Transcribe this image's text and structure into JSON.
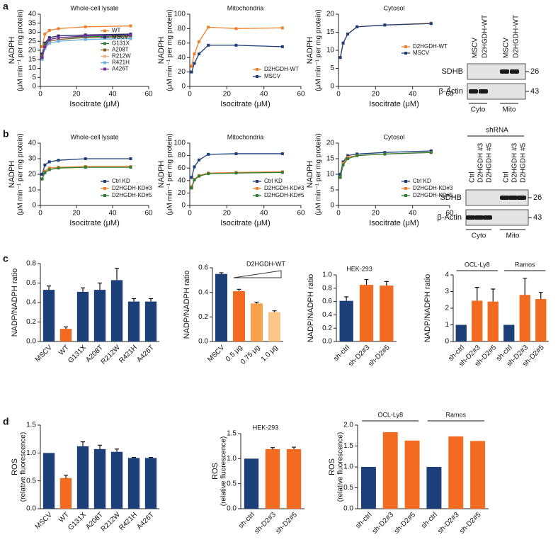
{
  "panel_labels": [
    "a",
    "b",
    "c",
    "d"
  ],
  "chart_data": [
    {
      "type": "line",
      "title": "Whole-cell lysate",
      "ylabel": [
        "NADPH",
        "(μM min⁻¹ per mg protein)"
      ],
      "xlabel": "Isocitrate (μM)",
      "x": [
        1,
        2.5,
        5,
        10,
        25,
        50
      ],
      "xlim": [
        0,
        60
      ],
      "xticks": [
        0,
        20,
        40,
        60
      ],
      "ylim": [
        0,
        40
      ],
      "yticks": [
        0,
        5,
        10,
        15,
        20,
        25,
        30,
        35,
        40
      ],
      "legend": "center right",
      "series": [
        {
          "name": "WT",
          "color": "#f07f2a",
          "values": [
            22,
            29,
            31,
            32,
            33,
            33.5
          ]
        },
        {
          "name": "MSCV",
          "color": "#2b2a6b",
          "values": [
            18,
            24,
            27,
            28,
            28.5,
            29
          ]
        },
        {
          "name": "G131X",
          "color": "#2e7d32",
          "values": [
            17,
            23,
            26,
            27,
            27.5,
            28
          ]
        },
        {
          "name": "A208T",
          "color": "#8b5a2b",
          "values": [
            17,
            22,
            25,
            26,
            27,
            27.5
          ]
        },
        {
          "name": "R212W",
          "color": "#f4b183",
          "values": [
            16,
            21,
            24,
            25,
            26,
            26.5
          ]
        },
        {
          "name": "R421H",
          "color": "#69b3e7",
          "values": [
            15,
            21,
            24,
            25,
            26,
            26.5
          ]
        },
        {
          "name": "A426T",
          "color": "#7030a0",
          "values": [
            16,
            22,
            26,
            27,
            28,
            28.5
          ]
        }
      ]
    },
    {
      "type": "line",
      "title": "Mitochondria",
      "ylabel": [
        "NADPH",
        "(μM min⁻¹ per mg protein)"
      ],
      "xlabel": "Isocitrate (μM)",
      "x": [
        1,
        2.5,
        5,
        10,
        25,
        50
      ],
      "xlim": [
        0,
        60
      ],
      "xticks": [
        0,
        20,
        40,
        60
      ],
      "ylim": [
        0,
        100
      ],
      "yticks": [
        0,
        20,
        40,
        60,
        80,
        100
      ],
      "legend": "lower right",
      "series": [
        {
          "name": "D2HGDH-WT",
          "color": "#f07f2a",
          "values": [
            28,
            45,
            62,
            82,
            80,
            81
          ]
        },
        {
          "name": "MSCV",
          "color": "#1c3f7a",
          "values": [
            20,
            32,
            45,
            57,
            57,
            55
          ]
        }
      ]
    },
    {
      "type": "line",
      "title": "Cytosol",
      "ylabel": [
        "NADPH",
        "(μM min⁻¹ per mg protein)"
      ],
      "xlabel": "Isocitrate (μM)",
      "x": [
        1,
        2.5,
        5,
        10,
        25,
        50
      ],
      "xlim": [
        0,
        60
      ],
      "xticks": [
        0,
        20,
        40,
        60
      ],
      "ylim": [
        0,
        20
      ],
      "yticks": [
        0,
        5,
        10,
        15,
        20
      ],
      "legend": "center right",
      "series": [
        {
          "name": "D2HGDH-WT",
          "color": "#f07f2a",
          "values": [
            8,
            12,
            14.5,
            16.5,
            17,
            17.5
          ]
        },
        {
          "name": "MSCV",
          "color": "#1c3f7a",
          "values": [
            8,
            12,
            14.5,
            16.5,
            17,
            17.4
          ]
        }
      ]
    },
    {
      "type": "line",
      "title": "Whole-cell lysate",
      "ylabel": [
        "NADPH",
        "(μM min⁻¹ per mg protein)"
      ],
      "xlabel": "Isocitrate (μM)",
      "x": [
        1,
        2.5,
        5,
        10,
        25,
        50
      ],
      "xlim": [
        0,
        60
      ],
      "xticks": [
        0,
        20,
        40,
        60
      ],
      "ylim": [
        0,
        40
      ],
      "yticks": [
        0,
        10,
        20,
        30,
        40
      ],
      "legend": "lower right",
      "series": [
        {
          "name": "Ctrl KD",
          "color": "#1c3f7a",
          "values": [
            20,
            26,
            28,
            29,
            30,
            30
          ]
        },
        {
          "name": "D2HGDH-KD#3",
          "color": "#f07f2a",
          "values": [
            17,
            22,
            24,
            24.5,
            25,
            25
          ]
        },
        {
          "name": "D2HGDH-KD#5",
          "color": "#2e7d32",
          "values": [
            17,
            21,
            23,
            24,
            24.5,
            24.5
          ]
        }
      ]
    },
    {
      "type": "line",
      "title": "Mitochondria",
      "ylabel": [
        "NADPH",
        "(μM min⁻¹ per mg protein)"
      ],
      "xlabel": "Isocitrate (μM)",
      "x": [
        1,
        2.5,
        5,
        10,
        25,
        50
      ],
      "xlim": [
        0,
        60
      ],
      "xticks": [
        0,
        20,
        40,
        60
      ],
      "ylim": [
        0,
        100
      ],
      "yticks": [
        0,
        20,
        40,
        60,
        80,
        100
      ],
      "legend": "lower right",
      "series": [
        {
          "name": "Ctrl KD",
          "color": "#1c3f7a",
          "values": [
            45,
            62,
            73,
            82,
            83,
            83
          ]
        },
        {
          "name": "D2HGDH-KD#3",
          "color": "#f07f2a",
          "values": [
            30,
            42,
            48,
            52,
            53,
            54
          ]
        },
        {
          "name": "D2HGDH-KD#5",
          "color": "#2e7d32",
          "values": [
            28,
            41,
            47,
            51,
            52,
            53
          ]
        }
      ]
    },
    {
      "type": "line",
      "title": "Cytosol",
      "ylabel": [
        "NADPH",
        "(μM min⁻¹ per mg protein)"
      ],
      "xlabel": "Isocitrate (μM)",
      "x": [
        1,
        2.5,
        5,
        10,
        25,
        50
      ],
      "xlim": [
        0,
        60
      ],
      "xticks": [
        0,
        20,
        40,
        60
      ],
      "ylim": [
        0,
        20
      ],
      "yticks": [
        0,
        5,
        10,
        15,
        20
      ],
      "legend": "lower right",
      "series": [
        {
          "name": "Ctrl KD",
          "color": "#1c3f7a",
          "values": [
            10,
            14,
            16,
            16.5,
            17,
            17.5
          ]
        },
        {
          "name": "D2HGDH-KD#3",
          "color": "#f07f2a",
          "values": [
            9,
            13.5,
            15.5,
            16,
            16.5,
            17
          ]
        },
        {
          "name": "D2HGDH-KD#5",
          "color": "#2e7d32",
          "values": [
            9,
            13,
            15,
            16,
            16.5,
            17
          ]
        }
      ]
    },
    {
      "type": "bar",
      "ylabel": [
        "NADP/NADPH ratio"
      ],
      "categories": [
        "MSCV",
        "WT",
        "G131X",
        "A208T",
        "R212W",
        "R421H",
        "A426T"
      ],
      "values": [
        0.53,
        0.13,
        0.51,
        0.53,
        0.63,
        0.41,
        0.41
      ],
      "errors": [
        0.04,
        0.02,
        0.04,
        0.07,
        0.12,
        0.03,
        0.03
      ],
      "colors": [
        "#1c3f7a",
        "#f26b21",
        "#1c3f7a",
        "#1c3f7a",
        "#1c3f7a",
        "#1c3f7a",
        "#1c3f7a"
      ],
      "ylim": [
        0,
        0.8
      ],
      "yticks": [
        {
          "value": 0,
          "label": "0.0"
        },
        0.2,
        0.4,
        0.6,
        0.8
      ]
    },
    {
      "type": "bar",
      "ylabel": [
        "NADP/NADPH ratio"
      ],
      "annotation": "D2HGDH-WT",
      "categories": [
        "MSCV",
        "0.5 μg",
        "0.75 μg",
        "1.0 μg"
      ],
      "values": [
        0.55,
        0.41,
        0.31,
        0.24
      ],
      "errors": [
        0.01,
        0.015,
        0.01,
        0.01
      ],
      "colors": [
        "#1c3f7a",
        "#f26b21",
        "#f8a04a",
        "#fbc688"
      ],
      "ylim": [
        0,
        0.6
      ],
      "yticks": [
        {
          "value": 0,
          "label": "0.0"
        },
        0.2,
        0.4,
        0.6
      ]
    },
    {
      "type": "bar",
      "title": "HEK-293",
      "ylabel": [
        "NADP/NADPH ratio"
      ],
      "categories": [
        "sh-ctrl",
        "sh-D2#3",
        "sh-D2#5"
      ],
      "values": [
        0.61,
        0.85,
        0.84
      ],
      "errors": [
        0.06,
        0.08,
        0.06
      ],
      "colors": [
        "#1c3f7a",
        "#f26b21",
        "#f26b21"
      ],
      "ylim": [
        0,
        1.0
      ],
      "yticks": [
        {
          "value": 0,
          "label": "0.0"
        },
        0.2,
        0.4,
        0.6,
        0.8,
        {
          "value": 1,
          "label": "1.0"
        }
      ]
    },
    {
      "type": "bar",
      "ylabel": [
        "NADP/NADPH ratio"
      ],
      "group_labels": [
        "OCL-Ly8",
        "Ramos"
      ],
      "categories": [
        "sh-ctrl",
        "sh-D2#3",
        "sh-D2#5",
        "sh-ctrl",
        "sh-D2#3",
        "sh-D2#5"
      ],
      "values": [
        1,
        2.45,
        2.4,
        1,
        2.8,
        2.55
      ],
      "errors": [
        0,
        0.8,
        0.75,
        0,
        1.0,
        0.4
      ],
      "colors": [
        "#1c3f7a",
        "#f26b21",
        "#f26b21",
        "#1c3f7a",
        "#f26b21",
        "#f26b21"
      ],
      "ylim": [
        0,
        4
      ],
      "yticks": [
        0,
        1,
        2,
        3,
        4
      ]
    },
    {
      "type": "bar",
      "ylabel": [
        "ROS",
        "(relative fluorescence)"
      ],
      "categories": [
        "MSCV",
        "WT",
        "G131X",
        "A208T",
        "R212W",
        "R421H",
        "A426T"
      ],
      "values": [
        1.0,
        0.55,
        1.12,
        1.07,
        1.02,
        0.91,
        0.91
      ],
      "errors": [
        0,
        0.05,
        0.08,
        0.07,
        0.05,
        0.01,
        0.01
      ],
      "colors": [
        "#1c3f7a",
        "#f26b21",
        "#1c3f7a",
        "#1c3f7a",
        "#1c3f7a",
        "#1c3f7a",
        "#1c3f7a"
      ],
      "ylim": [
        0,
        1.5
      ],
      "yticks": [
        {
          "value": 0,
          "label": "0.0"
        },
        0.5,
        {
          "value": 1,
          "label": "1.0"
        },
        1.5
      ]
    },
    {
      "type": "bar",
      "title": "HEK-293",
      "ylabel": [
        "ROS",
        "(relative fluorescence)"
      ],
      "categories": [
        "sh-ctrl",
        "sh-D2#3",
        "sh-D2#5"
      ],
      "values": [
        1.0,
        1.19,
        1.19
      ],
      "errors": [
        0,
        0.03,
        0.04
      ],
      "colors": [
        "#1c3f7a",
        "#f26b21",
        "#f26b21"
      ],
      "ylim": [
        0,
        1.5
      ],
      "yticks": [
        {
          "value": 0,
          "label": "0.0"
        },
        0.5,
        {
          "value": 1,
          "label": "1.0"
        },
        1.5
      ]
    },
    {
      "type": "bar",
      "ylabel": [
        "ROS",
        "(relative fluorescence)"
      ],
      "group_labels": [
        "OCL-Ly8",
        "Ramos"
      ],
      "categories": [
        "sh-ctrl",
        "sh-D2#3",
        "sh-D2#5",
        "sh-ctrl",
        "sh-D2#3",
        "sh-D2#5"
      ],
      "values": [
        1,
        1.83,
        1.63,
        1,
        1.73,
        1.62
      ],
      "errors": [
        0,
        0,
        0,
        0,
        0,
        0
      ],
      "colors": [
        "#1c3f7a",
        "#f26b21",
        "#f26b21",
        "#1c3f7a",
        "#f26b21",
        "#f26b21"
      ],
      "ylim": [
        0,
        2.0
      ],
      "yticks": [
        {
          "value": 0,
          "label": "0.0"
        },
        0.5,
        {
          "value": 1,
          "label": "1.0"
        },
        1.5,
        {
          "value": 2,
          "label": "2.0"
        }
      ]
    }
  ],
  "blots": [
    {
      "lanes": [
        "MSCV",
        "D2HGDH-WT",
        "MSCV",
        "D2HGDH-WT"
      ],
      "rows": [
        "SDHB",
        "β-Actin"
      ],
      "sizes": [
        "26",
        "43"
      ],
      "groups": [
        "Cyto",
        "Mito"
      ]
    },
    {
      "header": "shRNA",
      "lanes": [
        "Ctrl",
        "D2HGDH #3",
        "D2HGDH #5",
        "Ctrl",
        "D2HGDH #3",
        "D2HGDH #5"
      ],
      "rows": [
        "SDHB",
        "β-Actin"
      ],
      "sizes": [
        "26",
        "43"
      ],
      "groups": [
        "Cyto",
        "Mito"
      ]
    }
  ]
}
